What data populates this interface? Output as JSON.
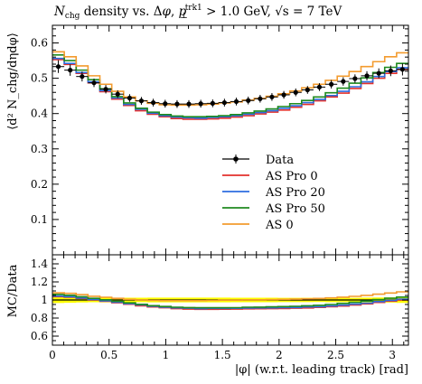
{
  "title": "N_chg density vs. Δφ, p_⊥^trk1 > 1.0 GeV, √s = 7 TeV",
  "title_parts": {
    "n": "N",
    "chg": "chg",
    "mid": " density vs. Δ",
    "phi": "φ",
    "comma": ", ",
    "p": "p",
    "perp": "⊥",
    "trk": "trk1",
    "cut": " > 1.0 GeV, ",
    "sqrt": "√s",
    "energy": " = 7 TeV"
  },
  "upper_ylabel": "⟨d² N_chg/dηdφ⟩",
  "lower_ylabel": "MC/Data",
  "xlabel": "|φ| (w.r.t. leading track) [rad]",
  "colors": {
    "data": "#000000",
    "AS Pro 0": "#e3312c",
    "AS Pro 20": "#2d6de0",
    "AS Pro 50": "#1f8a1f",
    "AS 0": "#f39b2e",
    "band": "#ffff00"
  },
  "chart_data": [
    {
      "type": "line",
      "panel": "main",
      "ylabel": "⟨d² N_chg/dηdφ⟩",
      "xlim": [
        0,
        3.14159
      ],
      "ylim": [
        0,
        0.65
      ],
      "xticks": [
        0,
        0.5,
        1,
        1.5,
        2,
        2.5,
        3
      ],
      "yticks": [
        0.1,
        0.2,
        0.3,
        0.4,
        0.5,
        0.6
      ],
      "legend_position": "bottom-right",
      "data": {
        "name": "Data",
        "x": [
          0.052,
          0.157,
          0.262,
          0.367,
          0.471,
          0.576,
          0.681,
          0.785,
          0.89,
          0.995,
          1.1,
          1.204,
          1.309,
          1.414,
          1.518,
          1.623,
          1.728,
          1.833,
          1.937,
          2.042,
          2.147,
          2.251,
          2.356,
          2.461,
          2.566,
          2.67,
          2.775,
          2.88,
          2.985,
          3.089
        ],
        "y": [
          0.533,
          0.523,
          0.505,
          0.487,
          0.469,
          0.455,
          0.444,
          0.436,
          0.431,
          0.428,
          0.427,
          0.427,
          0.428,
          0.429,
          0.431,
          0.434,
          0.437,
          0.442,
          0.447,
          0.453,
          0.46,
          0.467,
          0.475,
          0.483,
          0.491,
          0.499,
          0.507,
          0.514,
          0.521,
          0.525
        ],
        "yerr": [
          0.018,
          0.016,
          0.014,
          0.012,
          0.012,
          0.011,
          0.011,
          0.011,
          0.011,
          0.011,
          0.011,
          0.011,
          0.011,
          0.011,
          0.011,
          0.011,
          0.011,
          0.011,
          0.011,
          0.011,
          0.011,
          0.011,
          0.011,
          0.012,
          0.012,
          0.012,
          0.013,
          0.014,
          0.015,
          0.017
        ]
      },
      "series": [
        {
          "name": "AS Pro 0",
          "values": [
            0.553,
            0.539,
            0.514,
            0.487,
            0.462,
            0.441,
            0.423,
            0.408,
            0.398,
            0.391,
            0.386,
            0.384,
            0.384,
            0.385,
            0.387,
            0.39,
            0.394,
            0.399,
            0.404,
            0.41,
            0.418,
            0.426,
            0.436,
            0.447,
            0.458,
            0.471,
            0.485,
            0.5,
            0.514,
            0.525
          ]
        },
        {
          "name": "AS Pro 20",
          "values": [
            0.556,
            0.542,
            0.516,
            0.49,
            0.465,
            0.444,
            0.426,
            0.412,
            0.401,
            0.394,
            0.39,
            0.388,
            0.387,
            0.389,
            0.391,
            0.394,
            0.398,
            0.403,
            0.408,
            0.415,
            0.422,
            0.431,
            0.44,
            0.451,
            0.463,
            0.476,
            0.49,
            0.505,
            0.519,
            0.53
          ]
        },
        {
          "name": "AS Pro 50",
          "values": [
            0.566,
            0.55,
            0.523,
            0.496,
            0.47,
            0.448,
            0.43,
            0.415,
            0.404,
            0.397,
            0.393,
            0.391,
            0.391,
            0.392,
            0.394,
            0.397,
            0.402,
            0.407,
            0.413,
            0.42,
            0.428,
            0.437,
            0.447,
            0.459,
            0.472,
            0.486,
            0.501,
            0.516,
            0.531,
            0.542
          ]
        },
        {
          "name": "AS 0",
          "values": [
            0.575,
            0.561,
            0.535,
            0.507,
            0.483,
            0.463,
            0.447,
            0.436,
            0.429,
            0.425,
            0.424,
            0.424,
            0.425,
            0.427,
            0.43,
            0.433,
            0.438,
            0.443,
            0.449,
            0.456,
            0.464,
            0.473,
            0.483,
            0.494,
            0.506,
            0.519,
            0.533,
            0.547,
            0.561,
            0.572
          ]
        }
      ]
    },
    {
      "type": "line",
      "panel": "ratio",
      "ylabel": "MC/Data",
      "xlabel": "|φ| (w.r.t. leading track) [rad]",
      "xlim": [
        0,
        3.14159
      ],
      "ylim": [
        0.5,
        1.5
      ],
      "xticks": [
        0,
        0.5,
        1,
        1.5,
        2,
        2.5,
        3
      ],
      "yticks": [
        0.6,
        0.8,
        1,
        1.2,
        1.4
      ],
      "band": {
        "center": 1.0,
        "halfwidth": [
          0.034,
          0.031,
          0.028,
          0.025,
          0.026,
          0.024,
          0.025,
          0.025,
          0.026,
          0.026,
          0.026,
          0.026,
          0.026,
          0.026,
          0.026,
          0.025,
          0.025,
          0.025,
          0.025,
          0.024,
          0.024,
          0.024,
          0.023,
          0.025,
          0.024,
          0.024,
          0.026,
          0.027,
          0.029,
          0.032
        ]
      },
      "series": [
        {
          "name": "AS Pro 0",
          "values": [
            1.037,
            1.031,
            1.018,
            1.0,
            0.985,
            0.969,
            0.953,
            0.936,
            0.923,
            0.914,
            0.904,
            0.899,
            0.897,
            0.897,
            0.898,
            0.899,
            0.902,
            0.903,
            0.904,
            0.905,
            0.909,
            0.912,
            0.918,
            0.925,
            0.933,
            0.944,
            0.957,
            0.973,
            0.987,
            1.0
          ]
        },
        {
          "name": "AS Pro 20",
          "values": [
            1.043,
            1.036,
            1.022,
            1.006,
            0.991,
            0.976,
            0.959,
            0.945,
            0.93,
            0.921,
            0.913,
            0.909,
            0.904,
            0.907,
            0.907,
            0.908,
            0.911,
            0.912,
            0.913,
            0.916,
            0.917,
            0.923,
            0.926,
            0.934,
            0.943,
            0.954,
            0.966,
            0.982,
            0.996,
            1.01
          ]
        },
        {
          "name": "AS Pro 50",
          "values": [
            1.062,
            1.052,
            1.036,
            1.018,
            1.002,
            0.985,
            0.968,
            0.952,
            0.937,
            0.928,
            0.92,
            0.916,
            0.914,
            0.914,
            0.914,
            0.915,
            0.92,
            0.921,
            0.924,
            0.927,
            0.93,
            0.936,
            0.941,
            0.95,
            0.962,
            0.974,
            0.988,
            1.004,
            1.019,
            1.032
          ]
        },
        {
          "name": "AS 0",
          "values": [
            1.079,
            1.073,
            1.059,
            1.041,
            1.03,
            1.018,
            1.007,
            1.0,
            0.995,
            0.993,
            0.993,
            0.993,
            0.993,
            0.995,
            0.998,
            0.998,
            1.002,
            1.002,
            1.004,
            1.007,
            1.009,
            1.013,
            1.017,
            1.023,
            1.031,
            1.04,
            1.051,
            1.064,
            1.077,
            1.09
          ]
        }
      ]
    }
  ]
}
